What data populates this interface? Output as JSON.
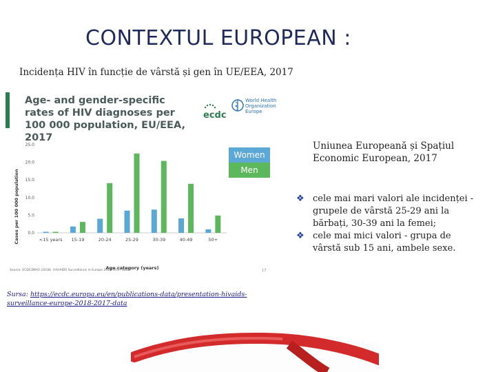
{
  "slide": {
    "title": "CONTEXTUL EUROPEAN :",
    "subtitle": "Incidența HIV în funcție de vârstă și gen în UE/EEA, 2017",
    "region_text": "Uniunea Europeană și Spațiul Economic European, 2017",
    "bullets": [
      "cele mai mari valori ale incidenței - grupele de vârstă 25-29 ani la bărbați, 30-39 ani la femei;",
      "cele mai mici valori - grupa de vârstă sub 15 ani, ambele sexe."
    ],
    "source_label": "Sursa: ",
    "source_url": "https://ecdc.europa.eu/en/publications-data/presentation-hivaids-surveillance-europe-2018-2017-data"
  },
  "figure": {
    "title": "Age- and gender-specific rates of HIV diagnoses per 100 000 population, EU/EEA, 2017",
    "logo_text": "ecdc",
    "who_text": "World Health Organization Europe",
    "source_note": "Source: ECDC/WHO (2018). HIV/AIDS Surveillance in Europe 2018–2017 data",
    "page_number": "17"
  },
  "chart_data": {
    "type": "bar",
    "title": "Age- and gender-specific rates of HIV diagnoses per 100 000 population, EU/EEA, 2017",
    "xlabel": "Age category (years)",
    "ylabel": "Cases per 100 000 population",
    "categories": [
      "<15 years",
      "15-19",
      "20-24",
      "25-29",
      "30-39",
      "40-49",
      "50+"
    ],
    "series": [
      {
        "name": "Women",
        "color": "#5ba7d6",
        "values": [
          0.3,
          1.8,
          4.0,
          6.3,
          6.6,
          4.1,
          1.0
        ]
      },
      {
        "name": "Men",
        "color": "#5db85d",
        "values": [
          0.3,
          3.1,
          14.1,
          22.5,
          20.4,
          13.9,
          4.9
        ]
      }
    ],
    "ylim": [
      0,
      25
    ],
    "yticks": [
      "0.0",
      "5.0",
      "10.0",
      "15.0",
      "20.0",
      "25.0"
    ],
    "legend": "right",
    "grid": false
  }
}
